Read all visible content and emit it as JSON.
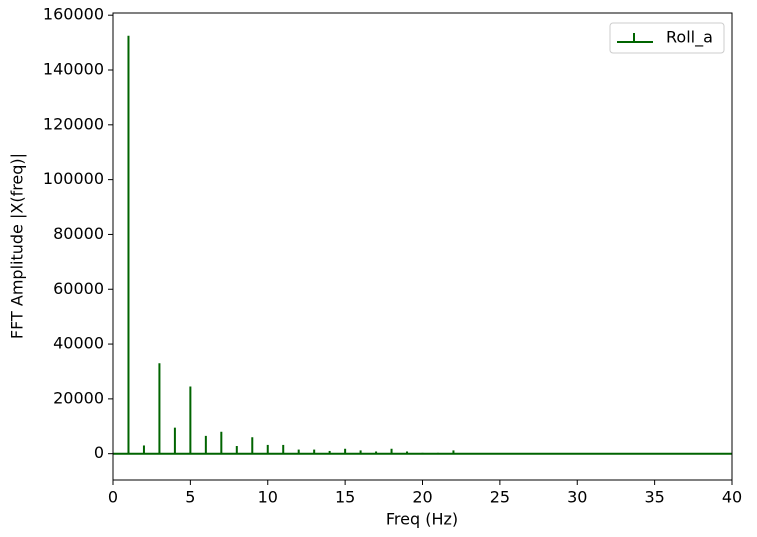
{
  "chart_data": {
    "type": "stem",
    "xlabel": "Freq (Hz)",
    "ylabel": "FFT Amplitude |X(freq)|",
    "x": [
      1,
      2,
      3,
      4,
      5,
      6,
      7,
      8,
      9,
      10,
      11,
      12,
      13,
      14,
      15,
      16,
      17,
      18,
      19,
      20,
      21,
      22
    ],
    "series": [
      {
        "name": "Roll_a",
        "color": "#006400",
        "values": [
          152500,
          3000,
          33000,
          9500,
          24500,
          6500,
          8000,
          2800,
          6000,
          3200,
          3200,
          1500,
          1500,
          1000,
          1800,
          1200,
          800,
          1800,
          800,
          300,
          300,
          1200
        ]
      }
    ],
    "xlim": [
      0,
      40
    ],
    "xticks": [
      0,
      5,
      10,
      15,
      20,
      25,
      30,
      35,
      40
    ],
    "ylim": [
      -9600,
      160800
    ],
    "yticks": [
      0,
      20000,
      40000,
      60000,
      80000,
      100000,
      120000,
      140000,
      160000
    ],
    "legend": "upper right"
  }
}
